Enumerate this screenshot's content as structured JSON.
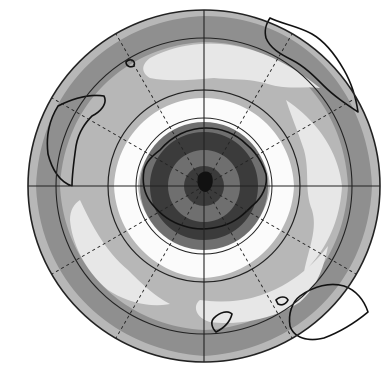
{
  "map": {
    "projection": "polar-stereographic",
    "hemisphere": "south",
    "graticule": {
      "meridians": 12,
      "parallel_circles": 2
    },
    "colors": {
      "background": "#ffffff",
      "outer_band": "#b7b7b7",
      "mid_gray": "#8f8f8f",
      "light_band": "#e7e7e7",
      "white_band": "#fbfbfb",
      "dark_core": "#3b3b3b",
      "core_gray": "#6f6f6f",
      "coastline": "#111111",
      "grid": "#222222"
    }
  }
}
